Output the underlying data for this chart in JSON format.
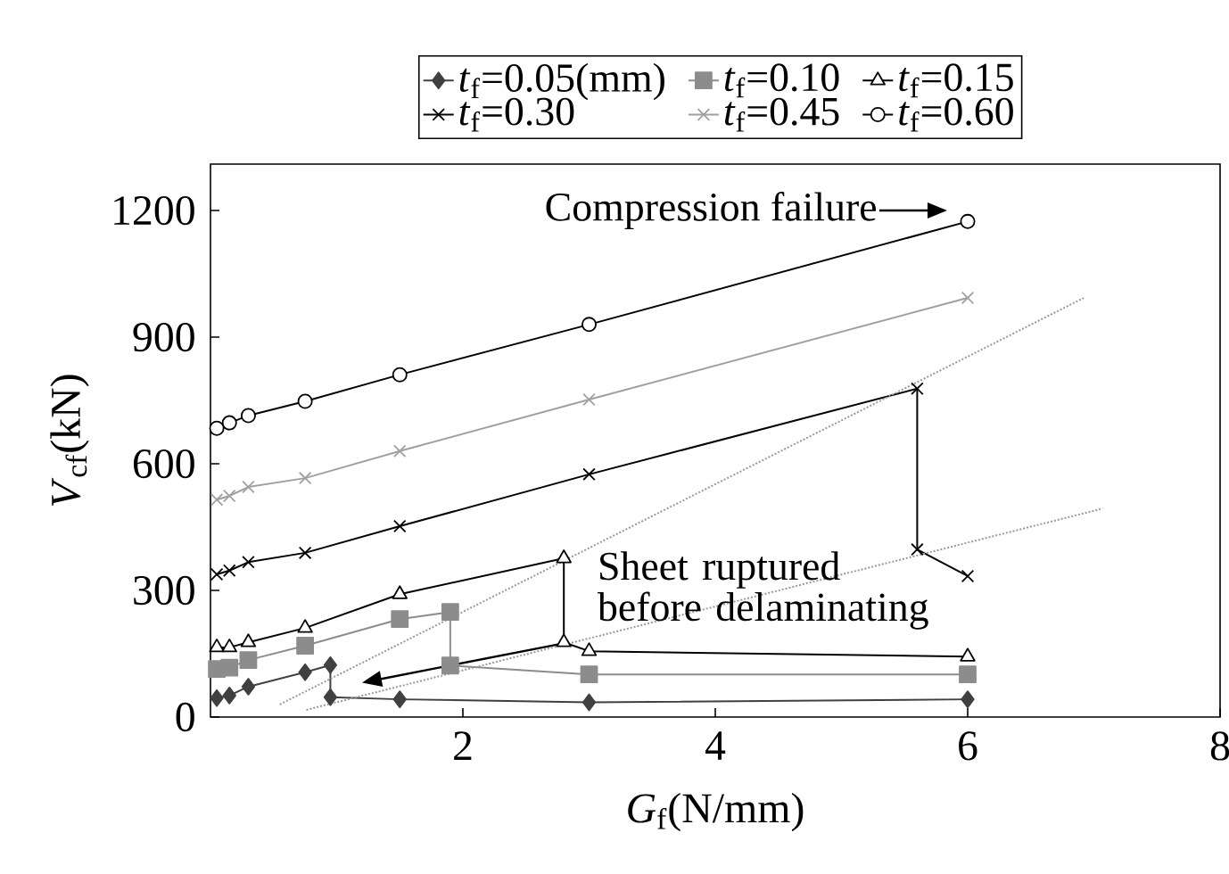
{
  "chart_data": {
    "type": "line",
    "xlabel": "*G*$_{f}$(N/mm)",
    "ylabel": "*V*$_{cf}$(kN)",
    "xlim": [
      0,
      8
    ],
    "xticks": [
      2,
      4,
      6,
      8
    ],
    "ylim": [
      0,
      1310
    ],
    "yticks": [
      0,
      300,
      600,
      900,
      1200
    ],
    "legend": "top",
    "grid": false,
    "series": [
      {
        "name": "*t*$_{f}$=0.05(mm)",
        "color": "#404040",
        "marker": "diamond",
        "x": [
          0.05,
          0.15,
          0.3,
          0.75,
          0.95,
          0.95,
          1.5,
          3,
          6
        ],
        "values": [
          45,
          51,
          72,
          106,
          123,
          47,
          42,
          35,
          42
        ]
      },
      {
        "name": "*t*$_{f}$=0.10",
        "color": "#8c8c8c",
        "marker": "square",
        "x": [
          0.05,
          0.15,
          0.3,
          0.75,
          1.5,
          1.9,
          1.9,
          3,
          6
        ],
        "values": [
          114,
          117,
          135,
          169,
          232,
          249,
          122,
          101,
          101
        ]
      },
      {
        "name": "*t*$_{f}$=0.15",
        "color": "#000000",
        "marker": "triangle",
        "x": [
          0.05,
          0.15,
          0.3,
          0.75,
          1.5,
          2.8,
          2.8,
          3,
          6
        ],
        "values": [
          165,
          165,
          177,
          211,
          291,
          376,
          177,
          156,
          143
        ]
      },
      {
        "name": "*t*$_{f}$=0.30",
        "color": "#000000",
        "marker": "cross",
        "x": [
          0.05,
          0.15,
          0.3,
          0.75,
          1.5,
          3,
          5.6,
          5.6,
          6
        ],
        "values": [
          338,
          347,
          367,
          389,
          452,
          575,
          778,
          397,
          334
        ]
      },
      {
        "name": "*t*$_{f}$=0.45",
        "color": "#a0a0a0",
        "marker": "cross",
        "x": [
          0.05,
          0.15,
          0.3,
          0.75,
          1.5,
          3,
          6
        ],
        "values": [
          515,
          524,
          545,
          566,
          630,
          752,
          993
        ]
      },
      {
        "name": "*t*$_{f}$=0.60",
        "color": "#000000",
        "marker": "circle",
        "x": [
          0.05,
          0.15,
          0.3,
          0.75,
          1.5,
          3,
          6
        ],
        "values": [
          684,
          697,
          714,
          748,
          811,
          930,
          1174
        ]
      },
      {
        "type": "line",
        "color": "#999999",
        "marker": "none",
        "line_style": "dotted",
        "x": [
          0.55,
          6.92
        ],
        "values": [
          30,
          993
        ]
      },
      {
        "type": "line",
        "color": "#999999",
        "marker": "none",
        "line_style": "dotted",
        "x": [
          0.76,
          7.07
        ],
        "values": [
          17,
          494
        ]
      }
    ],
    "annotations": [
      "Compression failure",
      "Sheet ruptured before delaminating"
    ]
  }
}
